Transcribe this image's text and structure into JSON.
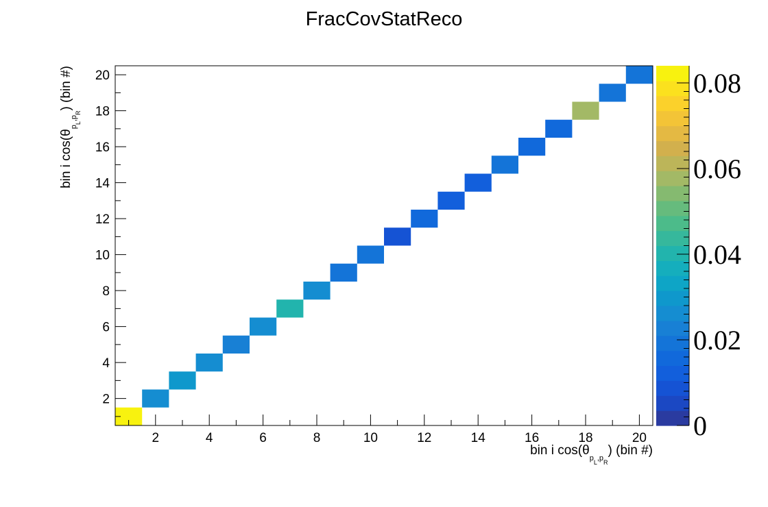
{
  "chart_data": {
    "type": "heatmap",
    "title": "FracCovStatReco",
    "xlabel": {
      "prefix": "bin i cos(θ",
      "sub1": "p",
      "sub1_small": "L",
      "comma": ",",
      "sub2": "p",
      "sub2_small": "R",
      "suffix": ") (bin #)"
    },
    "ylabel": {
      "prefix": "bin i cos(θ",
      "sub1": "p",
      "sub1_small": "L",
      "comma": ",",
      "sub2": "p",
      "sub2_small": "R",
      "suffix": ") (bin #)"
    },
    "xlim": [
      0.5,
      20.5
    ],
    "ylim": [
      0.5,
      20.5
    ],
    "x_ticks": [
      2,
      4,
      6,
      8,
      10,
      12,
      14,
      16,
      18,
      20
    ],
    "y_ticks": [
      2,
      4,
      6,
      8,
      10,
      12,
      14,
      16,
      18,
      20
    ],
    "colorbar": {
      "range": [
        0,
        0.084
      ],
      "ticks": [
        "0",
        "0.02",
        "0.04",
        "0.06",
        "0.08"
      ],
      "tick_values": [
        0,
        0.02,
        0.04,
        0.06,
        0.08
      ],
      "colors": [
        "#2a3ba0",
        "#1b48c3",
        "#1553d4",
        "#125fdc",
        "#1169db",
        "#1474d8",
        "#1880d5",
        "#158dd1",
        "#0f98cc",
        "#0ea5c6",
        "#15aebd",
        "#22b4ad",
        "#36b89c",
        "#4cbb8a",
        "#66bb7d",
        "#85ba70",
        "#a3b966",
        "#bcb559",
        "#d2b04d",
        "#e4b943",
        "#f3c437",
        "#fbd12b",
        "#fbe11e",
        "#f8f20f"
      ]
    },
    "cells": [
      {
        "x": 1,
        "y": 1,
        "value": 0.083
      },
      {
        "x": 2,
        "y": 2,
        "value": 0.026
      },
      {
        "x": 3,
        "y": 3,
        "value": 0.031
      },
      {
        "x": 4,
        "y": 4,
        "value": 0.027
      },
      {
        "x": 5,
        "y": 5,
        "value": 0.021
      },
      {
        "x": 6,
        "y": 6,
        "value": 0.026
      },
      {
        "x": 7,
        "y": 7,
        "value": 0.039
      },
      {
        "x": 8,
        "y": 8,
        "value": 0.027
      },
      {
        "x": 9,
        "y": 9,
        "value": 0.019
      },
      {
        "x": 10,
        "y": 10,
        "value": 0.019
      },
      {
        "x": 11,
        "y": 11,
        "value": 0.007
      },
      {
        "x": 12,
        "y": 12,
        "value": 0.014
      },
      {
        "x": 13,
        "y": 13,
        "value": 0.012
      },
      {
        "x": 14,
        "y": 14,
        "value": 0.012
      },
      {
        "x": 15,
        "y": 15,
        "value": 0.018
      },
      {
        "x": 16,
        "y": 16,
        "value": 0.014
      },
      {
        "x": 17,
        "y": 17,
        "value": 0.014
      },
      {
        "x": 18,
        "y": 18,
        "value": 0.056
      },
      {
        "x": 19,
        "y": 19,
        "value": 0.018
      },
      {
        "x": 20,
        "y": 20,
        "value": 0.018
      }
    ]
  }
}
